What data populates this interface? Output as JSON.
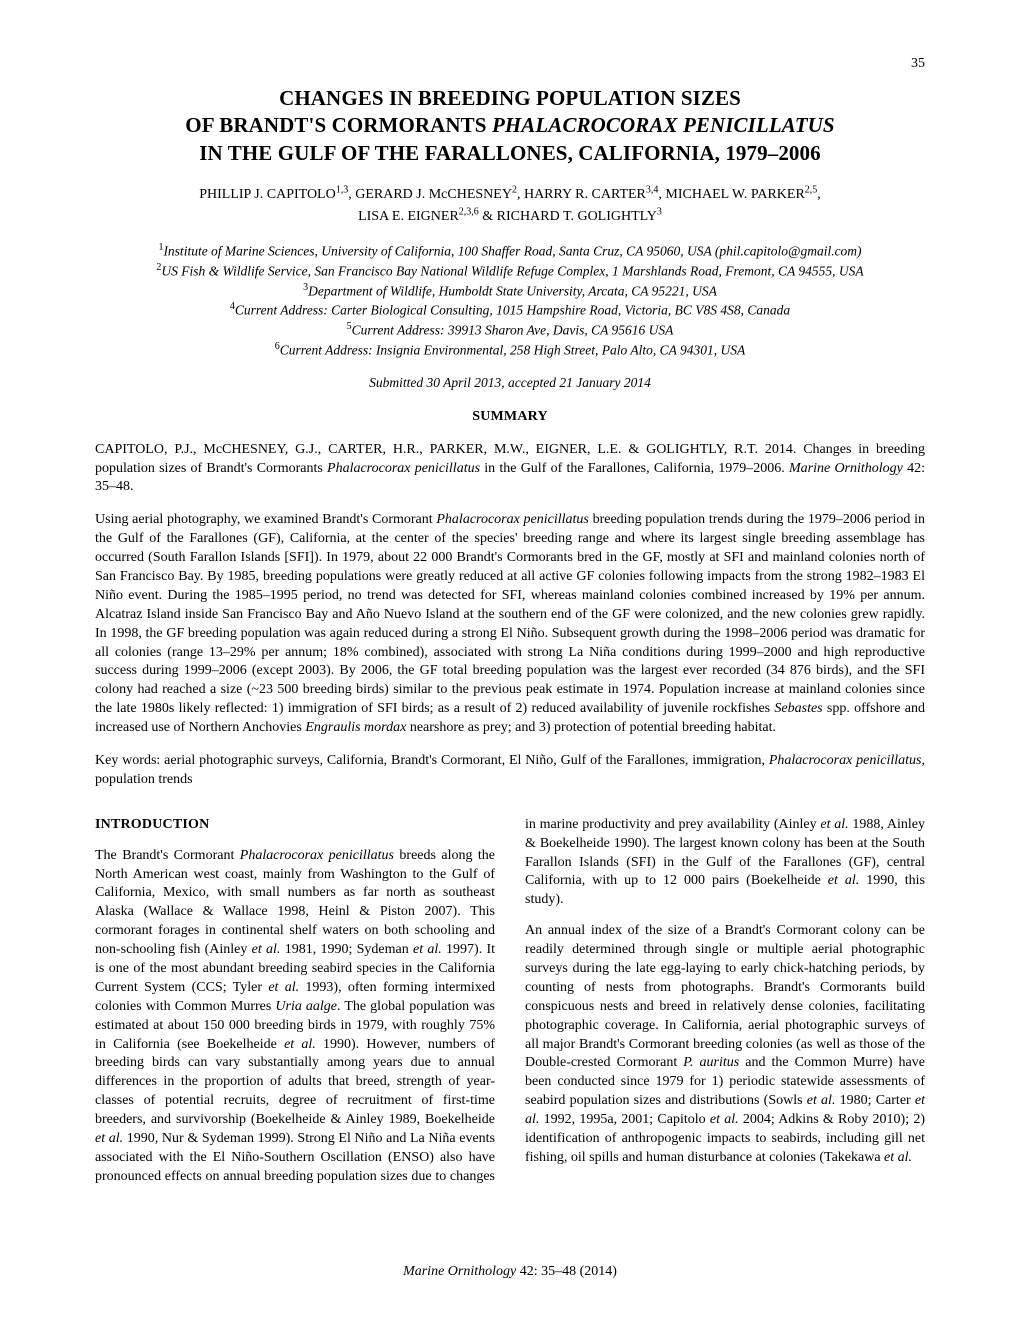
{
  "page_number": "35",
  "title": {
    "line1": "CHANGES IN BREEDING POPULATION SIZES",
    "line2a": "OF BRANDT'S CORMORANTS ",
    "line2b": "PHALACROCORAX PENICILLATUS",
    "line3": "IN THE GULF OF THE FARALLONES, CALIFORNIA, 1979–2006"
  },
  "authors": {
    "line1": "PHILLIP J. CAPITOLO1,3, GERARD J. McCHESNEY2, HARRY R. CARTER3,4, MICHAEL W. PARKER2,5,",
    "line2": "LISA E. EIGNER2,3,6 & RICHARD T. GOLIGHTLY3"
  },
  "affiliations": [
    "1Institute of Marine Sciences, University of California, 100 Shaffer Road, Santa Cruz, CA 95060, USA (phil.capitolo@gmail.com)",
    "2US Fish & Wildlife Service, San Francisco Bay National Wildlife Refuge Complex, 1 Marshlands Road, Fremont, CA 94555, USA",
    "3Department of Wildlife, Humboldt State University, Arcata, CA 95221, USA",
    "4Current Address: Carter Biological Consulting, 1015 Hampshire Road, Victoria, BC V8S 4S8, Canada",
    "5Current Address: 39913 Sharon Ave, Davis, CA 95616 USA",
    "6Current Address: Insignia Environmental, 258 High Street, Palo Alto, CA 94301, USA"
  ],
  "submitted": "Submitted 30 April 2013, accepted 21 January 2014",
  "summary_heading": "SUMMARY",
  "citation": {
    "authors": "CAPITOLO, P.J., McCHESNEY, G.J., CARTER, H.R., PARKER, M.W., EIGNER, L.E. & GOLIGHTLY, R.T. 2014. Changes in breeding population sizes of Brandt's Cormorants ",
    "species": "Phalacrocorax penicillatus",
    "rest": " in the Gulf of the Farallones, California, 1979–2006. ",
    "journal": "Marine Ornithology",
    "vol": " 42: 35–48."
  },
  "abstract": "Using aerial photography, we examined Brandt's Cormorant Phalacrocorax penicillatus breeding population trends during the 1979–2006 period in the Gulf of the Farallones (GF), California, at the center of the species' breeding range and where its largest single breeding assemblage has occurred (South Farallon Islands [SFI]). In 1979, about 22 000 Brandt's Cormorants bred in the GF, mostly at SFI and mainland colonies north of San Francisco Bay. By 1985, breeding populations were greatly reduced at all active GF colonies following impacts from the strong 1982–1983 El Niño event. During the 1985–1995 period, no trend was detected for SFI, whereas mainland colonies combined increased by 19% per annum. Alcatraz Island inside San Francisco Bay and Año Nuevo Island at the southern end of the GF were colonized, and the new colonies grew rapidly. In 1998, the GF breeding population was again reduced during a strong El Niño. Subsequent growth during the 1998–2006 period was dramatic for all colonies (range 13–29% per annum; 18% combined), associated with strong La Niña conditions during 1999–2000 and high reproductive success during 1999–2006 (except 2003). By 2006, the GF total breeding population was the largest ever recorded (34 876 birds), and the SFI colony had reached a size (~23 500 breeding birds) similar to the previous peak estimate in 1974. Population increase at mainland colonies since the late 1980s likely reflected: 1) immigration of SFI birds; as a result of 2) reduced availability of juvenile rockfishes Sebastes spp. offshore and increased use of Northern Anchovies Engraulis mordax nearshore as prey; and 3) protection of potential breeding habitat.",
  "keywords": {
    "label": "Key words: ",
    "text": "aerial photographic surveys, California, Brandt's Cormorant, El Niño, Gulf of the Farallones, immigration, Phalacrocorax penicillatus, population trends"
  },
  "introduction_heading": "INTRODUCTION",
  "intro_p1": "The Brandt's Cormorant Phalacrocorax penicillatus breeds along the North American west coast, mainly from Washington to the Gulf of California, Mexico, with small numbers as far north as southeast Alaska (Wallace & Wallace 1998, Heinl & Piston 2007). This cormorant forages in continental shelf waters on both schooling and non-schooling fish (Ainley et al. 1981, 1990; Sydeman et al. 1997). It is one of the most abundant breeding seabird species in the California Current System (CCS; Tyler et al. 1993), often forming intermixed colonies with Common Murres Uria aalge. The global population was estimated at about 150 000 breeding birds in 1979, with roughly 75% in California (see Boekelheide et al. 1990). However, numbers of breeding birds can vary substantially among years due to annual differences in the proportion of adults that breed, strength of year-classes of potential recruits, degree of recruitment of first-time breeders, and survivorship (Boekelheide & Ainley 1989, Boekelheide et al. 1990, Nur & Sydeman 1999). Strong El Niño and La Niña events associated with the El Niño-Southern Oscillation (ENSO) also have pronounced effects on annual",
  "intro_p2": "breeding population sizes due to changes in marine productivity and prey availability (Ainley et al. 1988, Ainley & Boekelheide 1990). The largest known colony has been at the South Farallon Islands (SFI) in the Gulf of the Farallones (GF), central California, with up to 12 000 pairs (Boekelheide et al. 1990, this study).",
  "intro_p3": "An annual index of the size of a Brandt's Cormorant colony can be readily determined through single or multiple aerial photographic surveys during the late egg-laying to early chick-hatching periods, by counting of nests from photographs. Brandt's Cormorants build conspicuous nests and breed in relatively dense colonies, facilitating photographic coverage. In California, aerial photographic surveys of all major Brandt's Cormorant breeding colonies (as well as those of the Double-crested Cormorant P. auritus and the Common Murre) have been conducted since 1979 for 1) periodic statewide assessments of seabird population sizes and distributions (Sowls et al. 1980; Carter et al. 1992, 1995a, 2001; Capitolo et al. 2004; Adkins & Roby 2010); 2) identification of anthropogenic impacts to seabirds, including gill net fishing, oil spills and human disturbance at colonies (Takekawa et al.",
  "footer": {
    "journal": "Marine Ornithology",
    "vol": " 42: 35–48 (2014)"
  }
}
